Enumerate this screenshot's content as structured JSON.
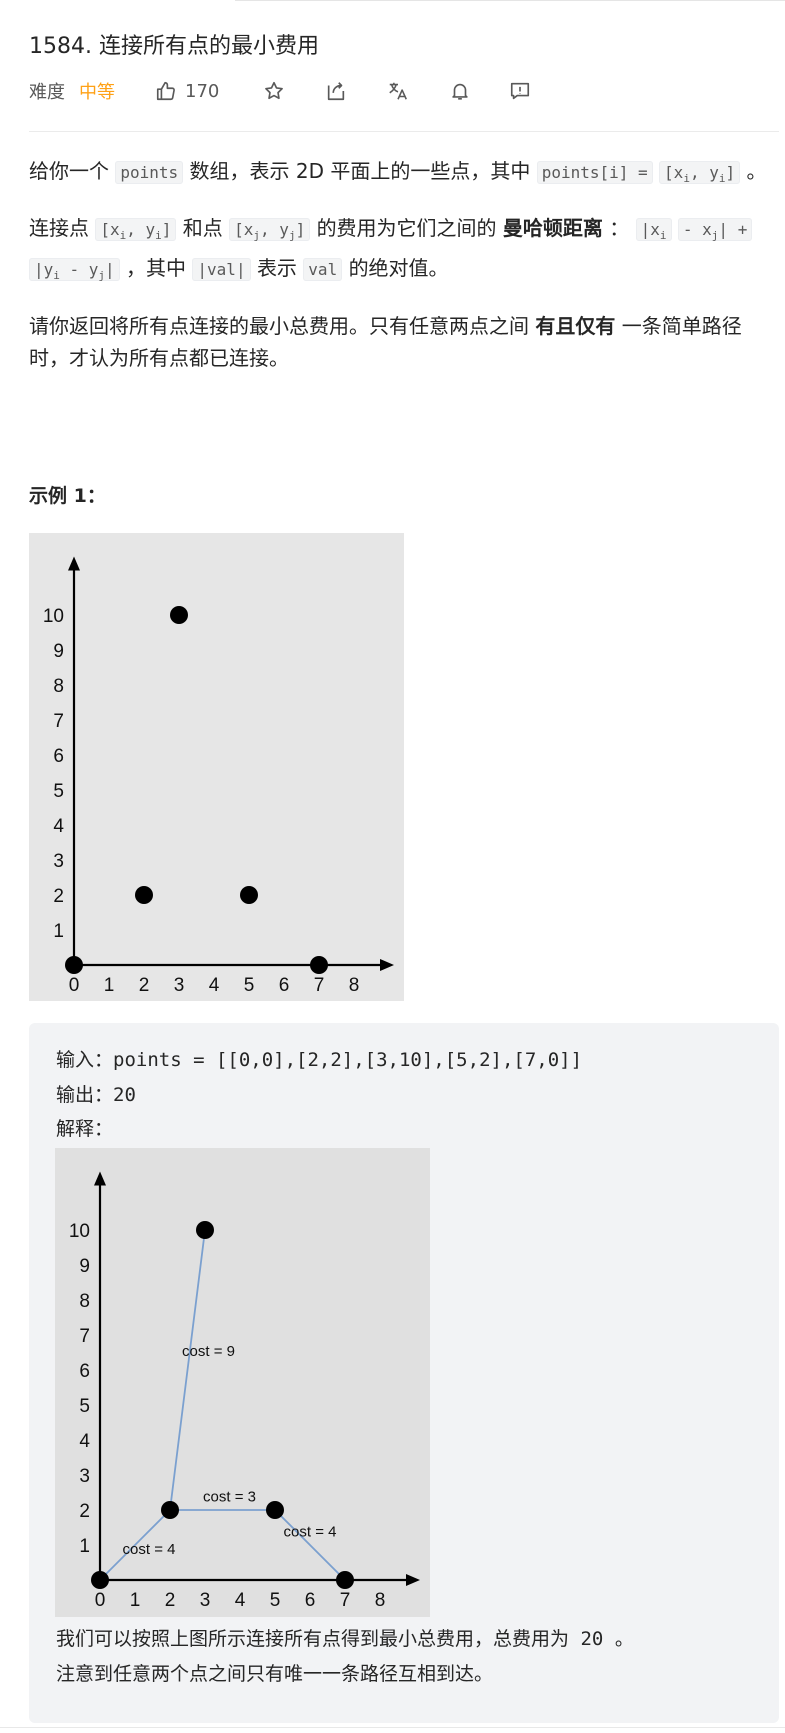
{
  "problem": {
    "title": "1584. 连接所有点的最小费用",
    "difficulty_label": "难度",
    "difficulty": "中等",
    "likes": "170"
  },
  "desc": {
    "p1": {
      "a": "给你一个",
      "code1": "points",
      "b": "数组，表示 2D 平面上的一些点，其中",
      "code2": "points[i] =",
      "code3_x": "[x",
      "code3_i": "i",
      "code3_y": ", y",
      "code3_i2": "i",
      "code3_end": "]",
      "c": "。"
    },
    "p2": {
      "a": "连接点",
      "pi_x": "[x",
      "pi_i": "i",
      "pi_y": ", y",
      "pi_i2": "i",
      "pi_end": "]",
      "b": "和点",
      "pj_x": "[x",
      "pj_j": "j",
      "pj_y": ", y",
      "pj_j2": "j",
      "pj_end": "]",
      "c": "的费用为它们之间的",
      "bold": "曼哈顿距离",
      "d": "：",
      "m1": "|x",
      "m1i": "i",
      "m2": "- x",
      "m2j": "j",
      "m2e": "|",
      "plus": "+",
      "m3": "|y",
      "m3i": "i",
      "m3m": " - y",
      "m3j": "j",
      "m3e": "|",
      "e": "，其中",
      "val1": "|val|",
      "f": "表示",
      "val2": "val",
      "g": "的绝对值。"
    },
    "p3": {
      "a": "请你返回将所有点连接的最小总费用。只有任意两点之间",
      "bold": "有且仅有",
      "b": "一条简单路径时，才认为所有点都已连接。"
    }
  },
  "example": {
    "heading": "示例 1：",
    "input_label": "输入：",
    "input_value": "points = [[0,0],[2,2],[3,10],[5,2],[7,0]]",
    "output_label": "输出：",
    "output_value": "20",
    "explain_label": "解释：",
    "note1a": "我们可以按照上图所示连接所有点得到最小总费用，总费用为",
    "note1v": "20",
    "note1b": "。",
    "note2": "注意到任意两个点之间只有唯一一条路径互相到达。"
  },
  "chart_data": [
    {
      "type": "scatter",
      "x_ticks": [
        "0",
        "1",
        "2",
        "3",
        "4",
        "5",
        "6",
        "7",
        "8"
      ],
      "y_ticks": [
        "1",
        "2",
        "3",
        "4",
        "5",
        "6",
        "7",
        "8",
        "9",
        "10"
      ],
      "points": [
        [
          0,
          0
        ],
        [
          2,
          2
        ],
        [
          3,
          10
        ],
        [
          5,
          2
        ],
        [
          7,
          0
        ]
      ],
      "xlim": [
        0,
        8.8
      ],
      "ylim": [
        0,
        11.5
      ]
    },
    {
      "type": "scatter",
      "x_ticks": [
        "0",
        "1",
        "2",
        "3",
        "4",
        "5",
        "6",
        "7",
        "8"
      ],
      "y_ticks": [
        "1",
        "2",
        "3",
        "4",
        "5",
        "6",
        "7",
        "8",
        "9",
        "10"
      ],
      "points": [
        [
          0,
          0
        ],
        [
          2,
          2
        ],
        [
          3,
          10
        ],
        [
          5,
          2
        ],
        [
          7,
          0
        ]
      ],
      "edges": [
        {
          "from": [
            0,
            0
          ],
          "to": [
            2,
            2
          ],
          "label": "cost = 4"
        },
        {
          "from": [
            2,
            2
          ],
          "to": [
            3,
            10
          ],
          "label": "cost = 9"
        },
        {
          "from": [
            2,
            2
          ],
          "to": [
            5,
            2
          ],
          "label": "cost = 3"
        },
        {
          "from": [
            5,
            2
          ],
          "to": [
            7,
            0
          ],
          "label": "cost = 4"
        }
      ],
      "xlim": [
        0,
        8.8
      ],
      "ylim": [
        0,
        11.5
      ]
    }
  ],
  "colors": {
    "accent_orange": "#ffa116",
    "edge_blue": "#7ba0cf"
  },
  "icons": [
    "thumbs-up-icon",
    "star-icon",
    "share-icon",
    "translate-icon",
    "bell-icon",
    "feedback-icon"
  ]
}
